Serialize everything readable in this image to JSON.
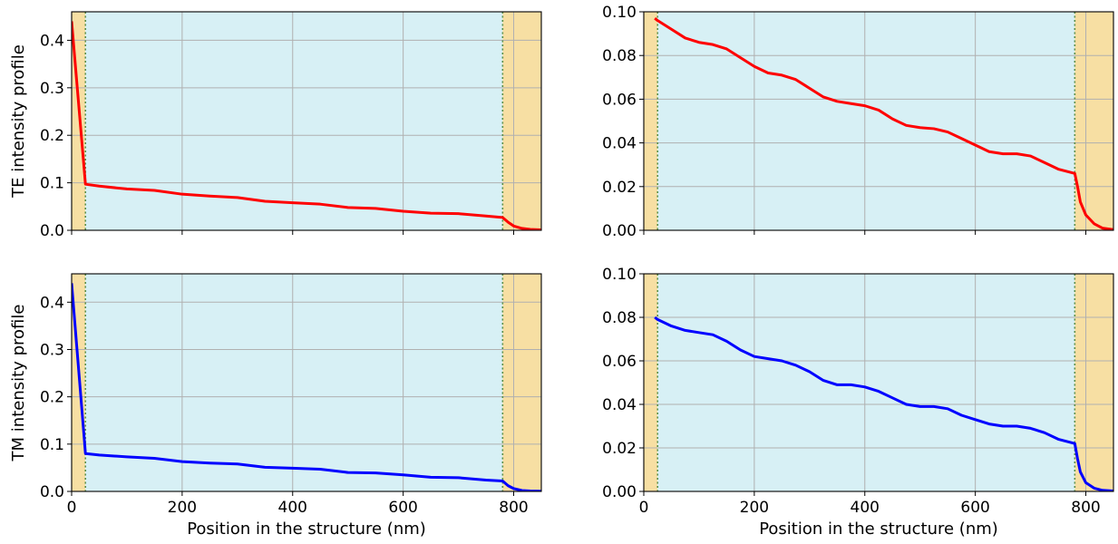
{
  "colors": {
    "cladding": "#f7dfa3",
    "core": "#d7f0f5",
    "grid": "#b0b0b0",
    "interface_line": "#5a8f4a",
    "te_series": "#ff0000",
    "tm_series": "#0000ff"
  },
  "chart_data": [
    {
      "id": "te-full",
      "type": "line",
      "xlabel": "",
      "ylabel": "TE intensity profile",
      "xlim": [
        0,
        850
      ],
      "ylim": [
        0,
        0.46
      ],
      "xticks": [
        {
          "value": 0,
          "label": ""
        },
        {
          "value": 200,
          "label": ""
        },
        {
          "value": 400,
          "label": ""
        },
        {
          "value": 600,
          "label": ""
        },
        {
          "value": 800,
          "label": ""
        }
      ],
      "yticks": [
        {
          "value": 0,
          "label": "0.0"
        },
        {
          "value": 0.1,
          "label": "0.1"
        },
        {
          "value": 0.2,
          "label": "0.2"
        },
        {
          "value": 0.3,
          "label": "0.3"
        },
        {
          "value": 0.4,
          "label": "0.4"
        }
      ],
      "grid": true,
      "regions": [
        {
          "x0": 0,
          "x1": 25,
          "fill": "cladding"
        },
        {
          "x0": 25,
          "x1": 780,
          "fill": "core"
        },
        {
          "x0": 780,
          "x1": 850,
          "fill": "cladding"
        }
      ],
      "interfaces": [
        25,
        780
      ],
      "series": [
        {
          "color": "te_series",
          "x": [
            0,
            25,
            50,
            100,
            150,
            200,
            250,
            300,
            350,
            400,
            450,
            500,
            550,
            600,
            650,
            700,
            750,
            780,
            790,
            800,
            815,
            830,
            850
          ],
          "y": [
            0.44,
            0.097,
            0.093,
            0.087,
            0.084,
            0.076,
            0.072,
            0.069,
            0.061,
            0.058,
            0.055,
            0.048,
            0.046,
            0.04,
            0.036,
            0.035,
            0.03,
            0.027,
            0.017,
            0.009,
            0.004,
            0.002,
            0.001
          ]
        }
      ]
    },
    {
      "id": "te-zoom",
      "type": "line",
      "xlabel": "",
      "ylabel": "",
      "xlim": [
        0,
        850
      ],
      "ylim": [
        0,
        0.1
      ],
      "xticks": [
        {
          "value": 0,
          "label": ""
        },
        {
          "value": 200,
          "label": ""
        },
        {
          "value": 400,
          "label": ""
        },
        {
          "value": 600,
          "label": ""
        },
        {
          "value": 800,
          "label": ""
        }
      ],
      "yticks": [
        {
          "value": 0,
          "label": "0.00"
        },
        {
          "value": 0.02,
          "label": "0.02"
        },
        {
          "value": 0.04,
          "label": "0.04"
        },
        {
          "value": 0.06,
          "label": "0.06"
        },
        {
          "value": 0.08,
          "label": "0.08"
        },
        {
          "value": 0.1,
          "label": "0.10"
        }
      ],
      "grid": true,
      "regions": [
        {
          "x0": 0,
          "x1": 25,
          "fill": "cladding"
        },
        {
          "x0": 25,
          "x1": 780,
          "fill": "core"
        },
        {
          "x0": 780,
          "x1": 850,
          "fill": "cladding"
        }
      ],
      "interfaces": [
        25,
        780
      ],
      "series": [
        {
          "color": "te_series",
          "x": [
            20,
            25,
            50,
            75,
            100,
            125,
            150,
            175,
            200,
            225,
            250,
            275,
            300,
            325,
            350,
            375,
            400,
            425,
            450,
            475,
            500,
            525,
            550,
            575,
            600,
            625,
            650,
            675,
            700,
            725,
            750,
            780,
            785,
            790,
            800,
            815,
            830,
            850
          ],
          "y": [
            0.097,
            0.096,
            0.092,
            0.088,
            0.086,
            0.085,
            0.083,
            0.079,
            0.075,
            0.072,
            0.071,
            0.069,
            0.065,
            0.061,
            0.059,
            0.058,
            0.057,
            0.055,
            0.051,
            0.048,
            0.047,
            0.0465,
            0.045,
            0.042,
            0.039,
            0.036,
            0.035,
            0.035,
            0.034,
            0.031,
            0.028,
            0.026,
            0.02,
            0.013,
            0.007,
            0.003,
            0.001,
            0.0003
          ]
        }
      ]
    },
    {
      "id": "tm-full",
      "type": "line",
      "xlabel": "Position in the structure (nm)",
      "ylabel": "TM intensity profile",
      "xlim": [
        0,
        850
      ],
      "ylim": [
        0,
        0.46
      ],
      "xticks": [
        {
          "value": 0,
          "label": "0"
        },
        {
          "value": 200,
          "label": "200"
        },
        {
          "value": 400,
          "label": "400"
        },
        {
          "value": 600,
          "label": "600"
        },
        {
          "value": 800,
          "label": "800"
        }
      ],
      "yticks": [
        {
          "value": 0,
          "label": "0.0"
        },
        {
          "value": 0.1,
          "label": "0.1"
        },
        {
          "value": 0.2,
          "label": "0.2"
        },
        {
          "value": 0.3,
          "label": "0.3"
        },
        {
          "value": 0.4,
          "label": "0.4"
        }
      ],
      "grid": true,
      "regions": [
        {
          "x0": 0,
          "x1": 25,
          "fill": "cladding"
        },
        {
          "x0": 25,
          "x1": 780,
          "fill": "core"
        },
        {
          "x0": 780,
          "x1": 850,
          "fill": "cladding"
        }
      ],
      "interfaces": [
        25,
        780
      ],
      "series": [
        {
          "color": "tm_series",
          "x": [
            0,
            25,
            50,
            100,
            150,
            200,
            250,
            300,
            350,
            400,
            450,
            500,
            550,
            600,
            650,
            700,
            750,
            780,
            790,
            800,
            815,
            830,
            850
          ],
          "y": [
            0.44,
            0.08,
            0.077,
            0.073,
            0.07,
            0.063,
            0.06,
            0.058,
            0.051,
            0.049,
            0.047,
            0.04,
            0.039,
            0.035,
            0.03,
            0.029,
            0.024,
            0.022,
            0.012,
            0.006,
            0.002,
            0.001,
            0.0005
          ]
        }
      ]
    },
    {
      "id": "tm-zoom",
      "type": "line",
      "xlabel": "Position in the structure (nm)",
      "ylabel": "",
      "xlim": [
        0,
        850
      ],
      "ylim": [
        0,
        0.1
      ],
      "xticks": [
        {
          "value": 0,
          "label": "0"
        },
        {
          "value": 200,
          "label": "200"
        },
        {
          "value": 400,
          "label": "400"
        },
        {
          "value": 600,
          "label": "600"
        },
        {
          "value": 800,
          "label": "800"
        }
      ],
      "yticks": [
        {
          "value": 0,
          "label": "0.00"
        },
        {
          "value": 0.02,
          "label": "0.02"
        },
        {
          "value": 0.04,
          "label": "0.04"
        },
        {
          "value": 0.06,
          "label": "0.06"
        },
        {
          "value": 0.08,
          "label": "0.08"
        },
        {
          "value": 0.1,
          "label": "0.10"
        }
      ],
      "grid": true,
      "regions": [
        {
          "x0": 0,
          "x1": 25,
          "fill": "cladding"
        },
        {
          "x0": 25,
          "x1": 780,
          "fill": "core"
        },
        {
          "x0": 780,
          "x1": 850,
          "fill": "cladding"
        }
      ],
      "interfaces": [
        25,
        780
      ],
      "series": [
        {
          "color": "tm_series",
          "x": [
            20,
            25,
            50,
            75,
            100,
            125,
            150,
            175,
            200,
            225,
            250,
            275,
            300,
            325,
            350,
            375,
            400,
            425,
            450,
            475,
            500,
            525,
            550,
            575,
            600,
            625,
            650,
            675,
            700,
            725,
            750,
            780,
            785,
            790,
            800,
            815,
            830,
            850
          ],
          "y": [
            0.08,
            0.079,
            0.076,
            0.074,
            0.073,
            0.072,
            0.069,
            0.065,
            0.062,
            0.061,
            0.06,
            0.058,
            0.055,
            0.051,
            0.049,
            0.049,
            0.048,
            0.046,
            0.043,
            0.04,
            0.039,
            0.039,
            0.038,
            0.035,
            0.033,
            0.031,
            0.03,
            0.03,
            0.029,
            0.027,
            0.024,
            0.022,
            0.015,
            0.009,
            0.004,
            0.0015,
            0.0005,
            0.0002
          ]
        }
      ]
    }
  ]
}
